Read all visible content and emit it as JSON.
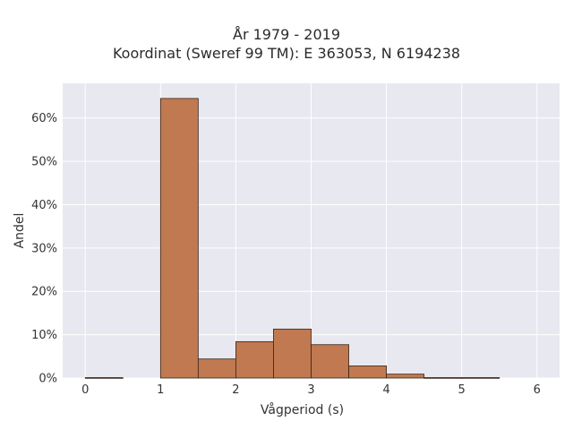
{
  "chart_data": {
    "type": "bar",
    "title_line1": "År 1979 - 2019",
    "title_line2": "Koordinat (Sweref 99 TM): E 363053, N 6194238",
    "xlabel": "Vågperiod (s)",
    "ylabel": "Andel",
    "xlim": [
      -0.3,
      6.3
    ],
    "ylim": [
      0,
      0.68
    ],
    "x_ticks": [
      0,
      1,
      2,
      3,
      4,
      5,
      6
    ],
    "x_tick_labels": [
      "0",
      "1",
      "2",
      "3",
      "4",
      "5",
      "6"
    ],
    "y_ticks": [
      0,
      0.1,
      0.2,
      0.3,
      0.4,
      0.5,
      0.6
    ],
    "y_tick_labels": [
      "0%",
      "10%",
      "20%",
      "30%",
      "40%",
      "50%",
      "60%"
    ],
    "bins": [
      {
        "x0": 0.0,
        "x1": 0.5,
        "value": 0.001
      },
      {
        "x0": 0.5,
        "x1": 1.0,
        "value": 0.0
      },
      {
        "x0": 1.0,
        "x1": 1.5,
        "value": 0.645
      },
      {
        "x0": 1.5,
        "x1": 2.0,
        "value": 0.044
      },
      {
        "x0": 2.0,
        "x1": 2.5,
        "value": 0.084
      },
      {
        "x0": 2.5,
        "x1": 3.0,
        "value": 0.113
      },
      {
        "x0": 3.0,
        "x1": 3.5,
        "value": 0.077
      },
      {
        "x0": 3.5,
        "x1": 4.0,
        "value": 0.028
      },
      {
        "x0": 4.0,
        "x1": 4.5,
        "value": 0.009
      },
      {
        "x0": 4.5,
        "x1": 5.0,
        "value": 0.001
      },
      {
        "x0": 5.0,
        "x1": 5.5,
        "value": 0.001
      }
    ],
    "grid": true,
    "colors": {
      "bar_fill": "#c07950",
      "bar_edge": "#3a2416",
      "plot_bg": "#e8e8f0",
      "grid": "#ffffff"
    }
  }
}
